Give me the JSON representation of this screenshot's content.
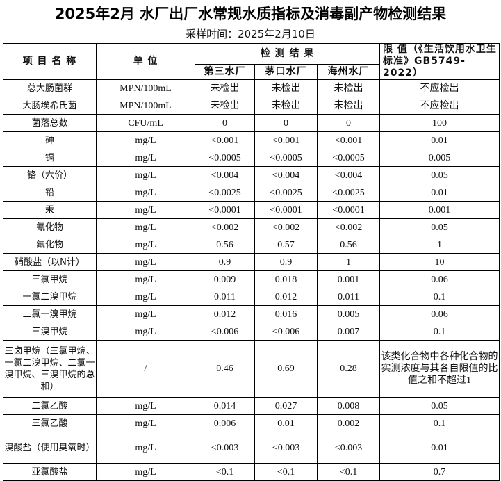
{
  "title": "2025年2月  水厂出厂水常规水质指标及消毒副产物检测结果",
  "sampling_time": "采样时间：2025年2月10日",
  "headers": {
    "item": "项 目 名 称",
    "unit": "单  位",
    "results": "检 测 结 果",
    "limit": "限 值（《生活饮用水卫生标准》GB5749-2022）",
    "plants": [
      "第三水厂",
      "茅口水厂",
      "海州水厂"
    ]
  },
  "rows": [
    {
      "name": "总大肠菌群",
      "unit": "MPN/100mL",
      "v": [
        "未检出",
        "未检出",
        "未检出"
      ],
      "limit": "不应检出"
    },
    {
      "name": "大肠埃希氏菌",
      "unit": "MPN/100mL",
      "v": [
        "未检出",
        "未检出",
        "未检出"
      ],
      "limit": "不应检出"
    },
    {
      "name": "菌落总数",
      "unit": "CFU/mL",
      "v": [
        "0",
        "0",
        "0"
      ],
      "limit": "100"
    },
    {
      "name": "砷",
      "unit": "mg/L",
      "v": [
        "<0.001",
        "<0.001",
        "<0.001"
      ],
      "limit": "0.01"
    },
    {
      "name": "镉",
      "unit": "mg/L",
      "v": [
        "<0.0005",
        "<0.0005",
        "<0.0005"
      ],
      "limit": "0.005"
    },
    {
      "name": "铬（六价）",
      "unit": "mg/L",
      "v": [
        "<0.004",
        "<0.004",
        "<0.004"
      ],
      "limit": "0.05"
    },
    {
      "name": "铅",
      "unit": "mg/L",
      "v": [
        "<0.0025",
        "<0.0025",
        "<0.0025"
      ],
      "limit": "0.01"
    },
    {
      "name": "汞",
      "unit": "mg/L",
      "v": [
        "<0.0001",
        "<0.0001",
        "<0.0001"
      ],
      "limit": "0.001"
    },
    {
      "name": "氰化物",
      "unit": "mg/L",
      "v": [
        "<0.002",
        "<0.002",
        "<0.002"
      ],
      "limit": "0.05"
    },
    {
      "name": "氟化物",
      "unit": "mg/L",
      "v": [
        "0.56",
        "0.57",
        "0.56"
      ],
      "limit": "1"
    },
    {
      "name": "硝酸盐（以N计）",
      "unit": "mg/L",
      "v": [
        "0.9",
        "0.9",
        "1"
      ],
      "limit": "10"
    },
    {
      "name": "三氯甲烷",
      "unit": "mg/L",
      "v": [
        "0.009",
        "0.018",
        "0.001"
      ],
      "limit": "0.06"
    },
    {
      "name": "一氯二溴甲烷",
      "unit": "mg/L",
      "v": [
        "0.011",
        "0.012",
        "0.011"
      ],
      "limit": "0.1"
    },
    {
      "name": "二氯一溴甲烷",
      "unit": "mg/L",
      "v": [
        "0.012",
        "0.016",
        "0.005"
      ],
      "limit": "0.06"
    },
    {
      "name": "三溴甲烷",
      "unit": "mg/L",
      "v": [
        "<0.006",
        "<0.006",
        "0.007"
      ],
      "limit": "0.1"
    },
    {
      "name": "三卤甲烷（三氯甲烷、一氯二溴甲烷、二氯一溴甲烷、三溴甲烷的总和）",
      "unit": "/",
      "v": [
        "0.46",
        "0.69",
        "0.28"
      ],
      "limit": "该类化合物中各种化合物的实测浓度与其各自限值的比值之和不超过1"
    },
    {
      "name": "二氯乙酸",
      "unit": "mg/L",
      "v": [
        "0.014",
        "0.027",
        "0.008"
      ],
      "limit": "0.05"
    },
    {
      "name": "三氯乙酸",
      "unit": "mg/L",
      "v": [
        "0.006",
        "0.01",
        "0.002"
      ],
      "limit": "0.1"
    },
    {
      "name": "溴酸盐（使用臭氧时）",
      "unit": "mg/L",
      "v": [
        "<0.003",
        "<0.003",
        "<0.003"
      ],
      "limit": "0.01"
    },
    {
      "name": "亚氯酸盐",
      "unit": "mg/L",
      "v": [
        "<0.1",
        "<0.1",
        "<0.1"
      ],
      "limit": "0.7"
    }
  ]
}
